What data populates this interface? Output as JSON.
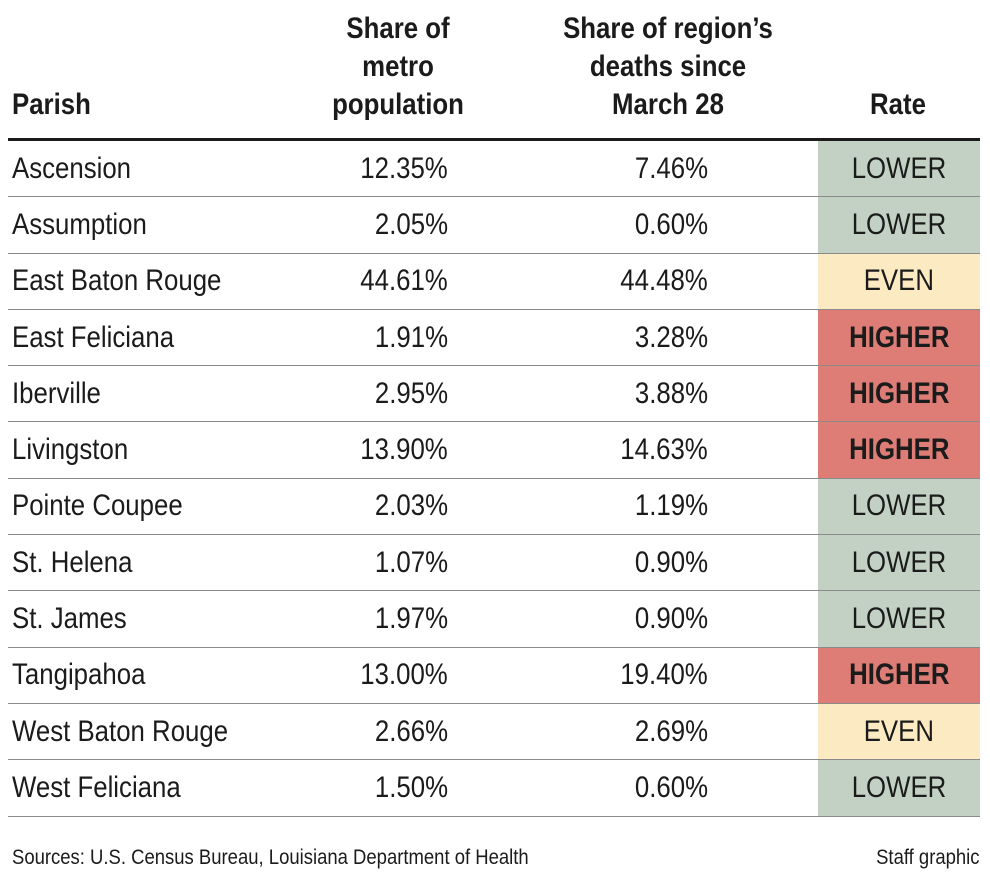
{
  "colors": {
    "LOWER": "#c2d1c3",
    "EVEN": "#fcebc2",
    "HIGHER": "#dd7d76"
  },
  "header": {
    "parish": "Parish",
    "population": [
      "Share of",
      "metro",
      "population"
    ],
    "deaths": [
      "Share of region’s",
      "deaths since",
      "March 28"
    ],
    "rate": "Rate"
  },
  "footer": {
    "sources": "Sources: U.S. Census Bureau, Louisiana Department of Health",
    "credit": "Staff graphic"
  },
  "chart_data": {
    "type": "table",
    "columns": [
      "Parish",
      "Share of metro population",
      "Share of region’s deaths since March 28",
      "Rate"
    ],
    "rows": [
      {
        "parish": "Ascension",
        "population": "12.35%",
        "deaths": "7.46%",
        "rate": "LOWER"
      },
      {
        "parish": "Assumption",
        "population": "2.05%",
        "deaths": "0.60%",
        "rate": "LOWER"
      },
      {
        "parish": "East Baton Rouge",
        "population": "44.61%",
        "deaths": "44.48%",
        "rate": "EVEN"
      },
      {
        "parish": "East Feliciana",
        "population": "1.91%",
        "deaths": "3.28%",
        "rate": "HIGHER"
      },
      {
        "parish": "Iberville",
        "population": "2.95%",
        "deaths": "3.88%",
        "rate": "HIGHER"
      },
      {
        "parish": "Livingston",
        "population": "13.90%",
        "deaths": "14.63%",
        "rate": "HIGHER"
      },
      {
        "parish": "Pointe Coupee",
        "population": "2.03%",
        "deaths": "1.19%",
        "rate": "LOWER"
      },
      {
        "parish": "St. Helena",
        "population": "1.07%",
        "deaths": "0.90%",
        "rate": "LOWER"
      },
      {
        "parish": "St. James",
        "population": "1.97%",
        "deaths": "0.90%",
        "rate": "LOWER"
      },
      {
        "parish": "Tangipahoa",
        "population": "13.00%",
        "deaths": "19.40%",
        "rate": "HIGHER"
      },
      {
        "parish": "West Baton Rouge",
        "population": "2.66%",
        "deaths": "2.69%",
        "rate": "EVEN"
      },
      {
        "parish": "West Feliciana",
        "population": "1.50%",
        "deaths": "0.60%",
        "rate": "LOWER"
      }
    ]
  }
}
